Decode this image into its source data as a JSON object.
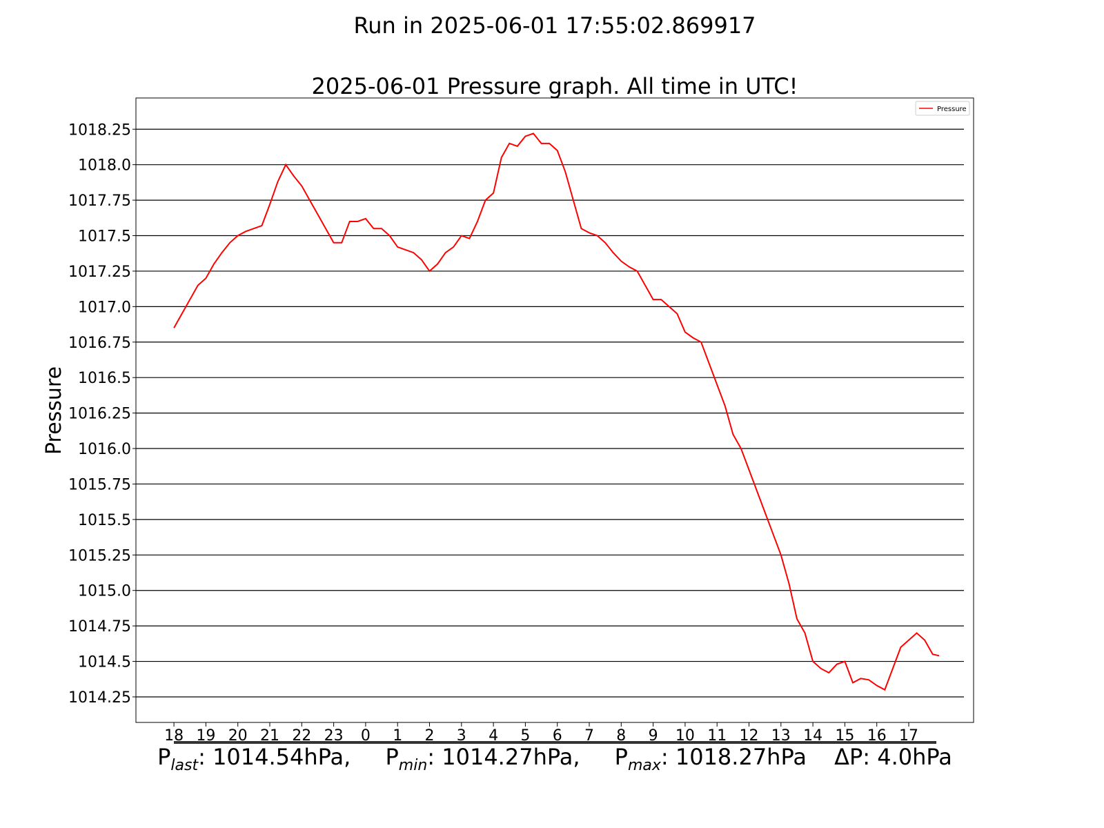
{
  "chart_data": {
    "type": "line",
    "suptitle": "Run in 2025-06-01 17:55:02.869917",
    "title": "2025-06-01 Pressure graph. All time in UTC!",
    "y_label": "Pressure",
    "x": [
      0,
      0.25,
      0.5,
      0.75,
      1,
      1.25,
      1.5,
      1.75,
      2,
      2.25,
      2.5,
      2.75,
      3,
      3.25,
      3.5,
      3.75,
      4,
      4.25,
      4.5,
      4.75,
      5,
      5.25,
      5.5,
      5.75,
      6,
      6.25,
      6.5,
      6.75,
      7,
      7.25,
      7.5,
      7.75,
      8,
      8.25,
      8.5,
      8.75,
      9,
      9.25,
      9.5,
      9.75,
      10,
      10.25,
      10.5,
      10.75,
      11,
      11.25,
      11.5,
      11.75,
      12,
      12.25,
      12.5,
      12.75,
      13,
      13.25,
      13.5,
      13.75,
      14,
      14.25,
      14.5,
      14.75,
      15,
      15.25,
      15.5,
      15.75,
      16,
      16.25,
      16.5,
      16.75,
      17,
      17.25,
      17.5,
      17.75,
      18,
      18.25,
      18.5,
      18.75,
      19,
      19.25,
      19.5,
      19.75,
      20,
      20.25,
      20.5,
      20.75,
      21,
      21.25,
      21.5,
      21.75,
      22,
      22.25,
      22.5,
      22.75,
      23,
      23.25,
      23.5,
      23.75,
      23.95
    ],
    "series": [
      {
        "name": "Pressure",
        "color": "#ff0000",
        "values": [
          1016.85,
          1016.95,
          1017.05,
          1017.15,
          1017.2,
          1017.3,
          1017.38,
          1017.45,
          1017.5,
          1017.53,
          1017.55,
          1017.57,
          1017.72,
          1017.88,
          1018.0,
          1017.92,
          1017.85,
          1017.75,
          1017.65,
          1017.55,
          1017.45,
          1017.45,
          1017.6,
          1017.6,
          1017.62,
          1017.55,
          1017.55,
          1017.5,
          1017.42,
          1017.4,
          1017.38,
          1017.33,
          1017.25,
          1017.3,
          1017.38,
          1017.42,
          1017.5,
          1017.48,
          1017.6,
          1017.75,
          1017.8,
          1018.05,
          1018.15,
          1018.13,
          1018.2,
          1018.22,
          1018.15,
          1018.15,
          1018.1,
          1017.95,
          1017.75,
          1017.55,
          1017.52,
          1017.5,
          1017.45,
          1017.38,
          1017.32,
          1017.28,
          1017.25,
          1017.15,
          1017.05,
          1017.05,
          1017.0,
          1016.95,
          1016.82,
          1016.78,
          1016.75,
          1016.6,
          1016.45,
          1016.3,
          1016.1,
          1016.0,
          1015.85,
          1015.7,
          1015.55,
          1015.4,
          1015.25,
          1015.05,
          1014.8,
          1014.7,
          1014.5,
          1014.45,
          1014.42,
          1014.48,
          1014.5,
          1014.35,
          1014.38,
          1014.37,
          1014.33,
          1014.3,
          1014.45,
          1014.6,
          1014.65,
          1014.7,
          1014.65,
          1014.55,
          1014.54
        ]
      }
    ],
    "xlim": [
      -1.19,
      25.03
    ],
    "xticks": [
      {
        "value": 0,
        "label": "18"
      },
      {
        "value": 1,
        "label": "19"
      },
      {
        "value": 2,
        "label": "20"
      },
      {
        "value": 3,
        "label": "21"
      },
      {
        "value": 4,
        "label": "22"
      },
      {
        "value": 5,
        "label": "23"
      },
      {
        "value": 6,
        "label": "0"
      },
      {
        "value": 7,
        "label": "1"
      },
      {
        "value": 8,
        "label": "2"
      },
      {
        "value": 9,
        "label": "3"
      },
      {
        "value": 10,
        "label": "4"
      },
      {
        "value": 11,
        "label": "5"
      },
      {
        "value": 12,
        "label": "6"
      },
      {
        "value": 13,
        "label": "7"
      },
      {
        "value": 14,
        "label": "8"
      },
      {
        "value": 15,
        "label": "9"
      },
      {
        "value": 16,
        "label": "10"
      },
      {
        "value": 17,
        "label": "11"
      },
      {
        "value": 18,
        "label": "12"
      },
      {
        "value": 19,
        "label": "13"
      },
      {
        "value": 20,
        "label": "14"
      },
      {
        "value": 21,
        "label": "15"
      },
      {
        "value": 22,
        "label": "16"
      },
      {
        "value": 23,
        "label": "17"
      }
    ],
    "ylim": [
      1014.07,
      1018.47
    ],
    "yticks": [
      1014.25,
      1014.5,
      1014.75,
      {
        "value": 1015,
        "label": "1015.0"
      },
      1015.25,
      1015.5,
      1015.75,
      {
        "value": 1016,
        "label": "1016.0"
      },
      1016.25,
      1016.5,
      1016.75,
      {
        "value": 1017,
        "label": "1017.0"
      },
      1017.25,
      1017.5,
      1017.75,
      {
        "value": 1018,
        "label": "1018.0"
      },
      1018.25
    ],
    "grid": true,
    "legend": "upper right",
    "stats": [
      {
        "symbol": "P",
        "sub": "last",
        "text": ": 1014.54hPa,"
      },
      {
        "symbol": "P",
        "sub": "min",
        "text": ": 1014.27hPa,"
      },
      {
        "symbol": "P",
        "sub": "max",
        "text": ": 1018.27hPa"
      },
      {
        "symbol": "ΔP",
        "text": ": 4.0hPa"
      }
    ]
  }
}
